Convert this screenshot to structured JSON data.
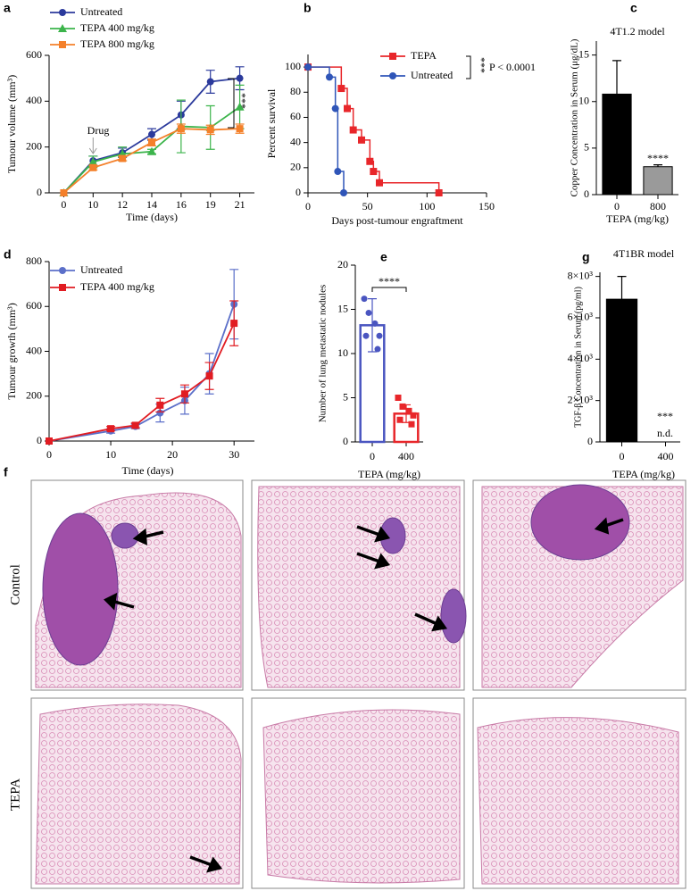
{
  "chart_data": [
    {
      "panel": "a",
      "type": "line",
      "categories": [
        "0",
        "10",
        "12",
        "14",
        "16",
        "19",
        "21"
      ],
      "series": [
        {
          "name": "Untreated",
          "color": "#2b3a9c",
          "marker": "circle",
          "values": [
            0,
            140,
            175,
            255,
            340,
            485,
            500
          ],
          "errors": [
            0,
            20,
            20,
            25,
            60,
            50,
            50
          ]
        },
        {
          "name": "TEPA 400 mg/kg",
          "color": "#3cb44b",
          "marker": "triangle",
          "values": [
            0,
            135,
            170,
            180,
            290,
            285,
            375
          ],
          "errors": [
            0,
            25,
            30,
            10,
            115,
            95,
            95
          ]
        },
        {
          "name": "TEPA 800 mg/kg",
          "color": "#f4802a",
          "marker": "square",
          "values": [
            0,
            110,
            150,
            220,
            280,
            275,
            280
          ],
          "errors": [
            0,
            10,
            10,
            15,
            20,
            20,
            20
          ]
        }
      ],
      "xlabel": "Time (days)",
      "ylabel": "Tumour volume (mm³)",
      "ylim": [
        0,
        600
      ],
      "yticks": [
        0,
        200,
        400,
        600
      ],
      "annotations": [
        "Drug",
        "***"
      ]
    },
    {
      "panel": "b",
      "type": "step",
      "series": [
        {
          "name": "TEPA",
          "color": "#e8262a",
          "marker": "square",
          "x": [
            0,
            28,
            33,
            38,
            45,
            52,
            55,
            60,
            110
          ],
          "values": [
            100,
            83,
            67,
            50,
            42,
            25,
            17,
            8,
            0
          ]
        },
        {
          "name": "Untreated",
          "color": "#2f55b8",
          "marker": "circle",
          "x": [
            0,
            18,
            23,
            25,
            30
          ],
          "values": [
            100,
            92,
            67,
            17,
            0
          ]
        }
      ],
      "xlabel": "Days post-tumour engraftment",
      "ylabel": "Percent survival",
      "xlim": [
        0,
        150
      ],
      "xticks": [
        0,
        50,
        100,
        150
      ],
      "ylim": [
        0,
        110
      ],
      "yticks": [
        0,
        20,
        40,
        60,
        80,
        100
      ],
      "annotations": [
        "***",
        "P < 0.0001"
      ]
    },
    {
      "panel": "c",
      "type": "bar",
      "title": "4T1.2 model",
      "categories": [
        "0",
        "800"
      ],
      "values": [
        10.8,
        3.0
      ],
      "errors": [
        3.6,
        0.2
      ],
      "colors": [
        "#000000",
        "#9a9a9a"
      ],
      "bar_style": "filled",
      "xlabel": "TEPA (mg/kg)",
      "ylabel": "Copper Concentration in Serum (μg/dL)",
      "ylim": [
        0,
        16.5
      ],
      "yticks": [
        0,
        5,
        10,
        15
      ],
      "annotations": [
        "****"
      ]
    },
    {
      "panel": "d",
      "type": "line",
      "x": [
        0,
        10,
        14,
        18,
        22,
        26,
        30
      ],
      "series": [
        {
          "name": "Untreated",
          "color": "#5b6fc9",
          "marker": "circle",
          "values": [
            0,
            45,
            65,
            125,
            180,
            300,
            610
          ],
          "errors": [
            0,
            10,
            10,
            40,
            60,
            90,
            155
          ]
        },
        {
          "name": "TEPA 400 mg/kg",
          "color": "#e11c22",
          "marker": "square",
          "values": [
            0,
            55,
            70,
            160,
            210,
            290,
            525
          ],
          "errors": [
            0,
            10,
            10,
            30,
            40,
            60,
            100
          ]
        }
      ],
      "xlabel": "Time (days)",
      "ylabel": "Tumour growth (mm³)",
      "xlim": [
        0,
        32
      ],
      "xticks": [
        0,
        10,
        20,
        30
      ],
      "ylim": [
        0,
        800
      ],
      "yticks": [
        0,
        200,
        400,
        600,
        800
      ],
      "annotations": []
    },
    {
      "panel": "e",
      "type": "bar",
      "categories": [
        "0",
        "400"
      ],
      "values": [
        13.2,
        3.2
      ],
      "errors": [
        3.0,
        1.0
      ],
      "points": [
        [
          16.2,
          14.6,
          13.4,
          12.0,
          12.0,
          10.5
        ],
        [
          5,
          4,
          3.5,
          3,
          2.5,
          2
        ]
      ],
      "colors": [
        "#4a55c0",
        "#e8262a"
      ],
      "bar_style": "outline",
      "xlabel": "TEPA (mg/kg)",
      "ylabel": "Number of lung metastatic nodules",
      "ylim": [
        0,
        20
      ],
      "yticks": [
        0,
        5,
        10,
        15,
        20
      ],
      "annotations": [
        "****"
      ]
    },
    {
      "panel": "g",
      "type": "bar",
      "title": "4T1BR model",
      "categories": [
        "0",
        "400"
      ],
      "values": [
        6900,
        null
      ],
      "errors": [
        1100,
        null
      ],
      "colors": [
        "#000000",
        "#000000"
      ],
      "bar_style": "filled",
      "xlabel": "TEPA (mg/kg)",
      "ylabel": "TGF-β Concentration in Serum (pg/ml)",
      "ylim": [
        0,
        8200
      ],
      "yticks": [
        0,
        {
          "value": 2000,
          "label": "2×10³"
        },
        {
          "value": 4000,
          "label": "4×10³"
        },
        {
          "value": 6000,
          "label": "6×10³"
        },
        {
          "value": 8000,
          "label": "8×10³"
        }
      ],
      "annotations": [
        "***",
        "n.d."
      ]
    }
  ],
  "panel_f": {
    "label": "f",
    "rows": [
      "Control",
      "TEPA"
    ]
  }
}
